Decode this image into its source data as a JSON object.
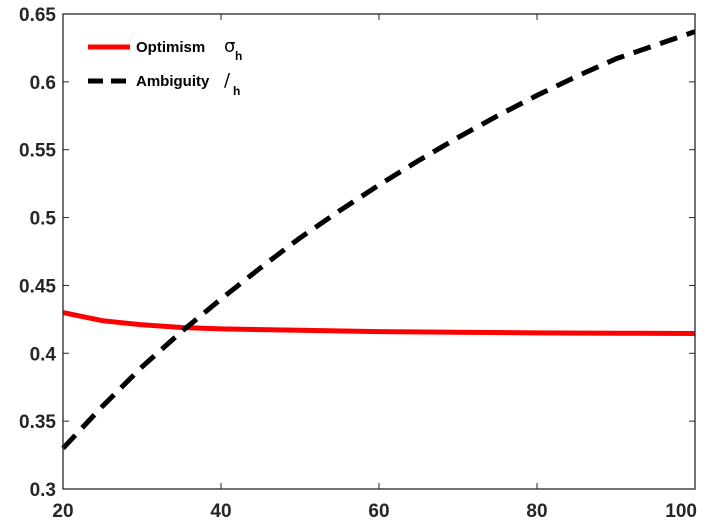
{
  "chart_data": {
    "type": "line",
    "title": "",
    "xlabel": "",
    "ylabel": "",
    "xlim": [
      20,
      100
    ],
    "ylim": [
      0.3,
      0.65
    ],
    "xticks": [
      20,
      40,
      60,
      80,
      100
    ],
    "xtick_labels": [
      "20",
      "40",
      "60",
      "80",
      "100"
    ],
    "yticks": [
      0.3,
      0.35,
      0.4,
      0.45,
      0.5,
      0.55,
      0.6,
      0.65
    ],
    "ytick_labels": [
      "0.3",
      "0.35",
      "0.4",
      "0.45",
      "0.5",
      "0.55",
      "0.6",
      "0.65"
    ],
    "grid": false,
    "legend_position": "top-left",
    "series": [
      {
        "name": "Optimism",
        "symbol": "σ",
        "subscript": "h",
        "color": "#ff0000",
        "style": "solid",
        "x": [
          20,
          25,
          30,
          35,
          40,
          50,
          60,
          70,
          80,
          90,
          100
        ],
        "y": [
          0.43,
          0.424,
          0.421,
          0.419,
          0.418,
          0.417,
          0.416,
          0.4155,
          0.415,
          0.4148,
          0.4146
        ]
      },
      {
        "name": "Ambiguity",
        "symbol": "/",
        "subscript": "h",
        "color": "#000000",
        "style": "dashed",
        "x": [
          20,
          25,
          30,
          35,
          40,
          45,
          50,
          55,
          60,
          65,
          70,
          75,
          80,
          85,
          90,
          95,
          100
        ],
        "y": [
          0.33,
          0.361,
          0.39,
          0.416,
          0.44,
          0.463,
          0.485,
          0.505,
          0.524,
          0.542,
          0.559,
          0.575,
          0.59,
          0.604,
          0.617,
          0.627,
          0.637
        ]
      }
    ]
  }
}
